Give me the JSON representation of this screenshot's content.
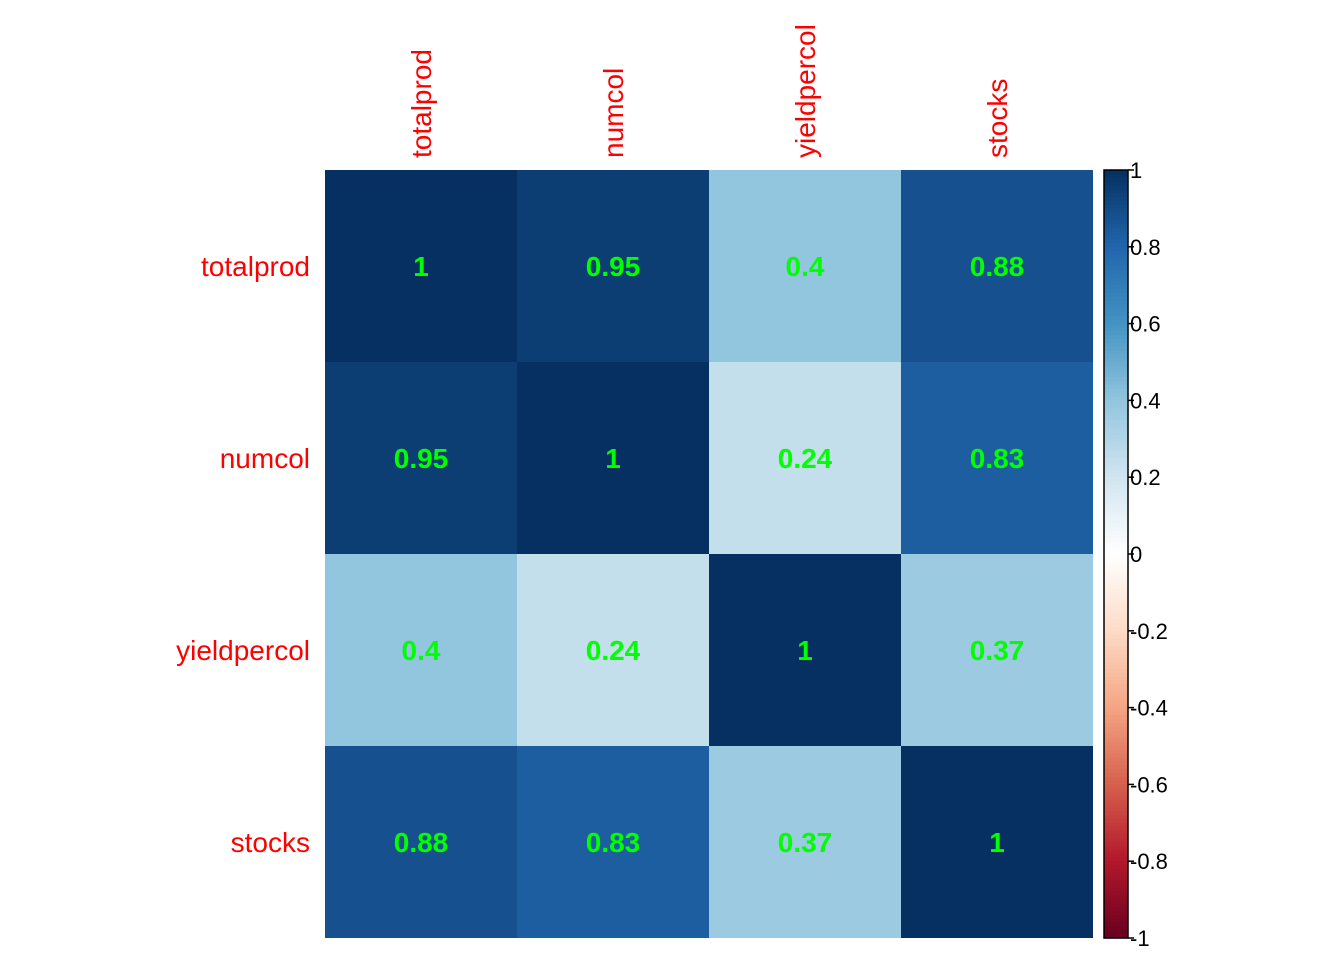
{
  "chart_data": {
    "type": "heatmap",
    "title": "",
    "variables": [
      "totalprod",
      "numcol",
      "yieldpercol",
      "stocks"
    ],
    "matrix": [
      [
        1,
        0.95,
        0.4,
        0.88
      ],
      [
        0.95,
        1,
        0.24,
        0.83
      ],
      [
        0.4,
        0.24,
        1,
        0.37
      ],
      [
        0.88,
        0.83,
        0.37,
        1
      ]
    ],
    "colorbar": {
      "range": [
        -1,
        1
      ],
      "ticks": [
        "1",
        "0.8",
        "0.6",
        "0.4",
        "0.2",
        "0",
        "-0.2",
        "-0.4",
        "-0.6",
        "-0.8",
        "-1"
      ],
      "palette": [
        "#67001F",
        "#B2182B",
        "#D6604D",
        "#F4A582",
        "#FDDBC7",
        "#FFFFFF",
        "#D1E5F0",
        "#92C5DE",
        "#4393C3",
        "#2166AC",
        "#053061"
      ]
    },
    "colors": {
      "label": "#FF0000",
      "value_text": "#00FF00",
      "tick_text": "#000000"
    }
  }
}
